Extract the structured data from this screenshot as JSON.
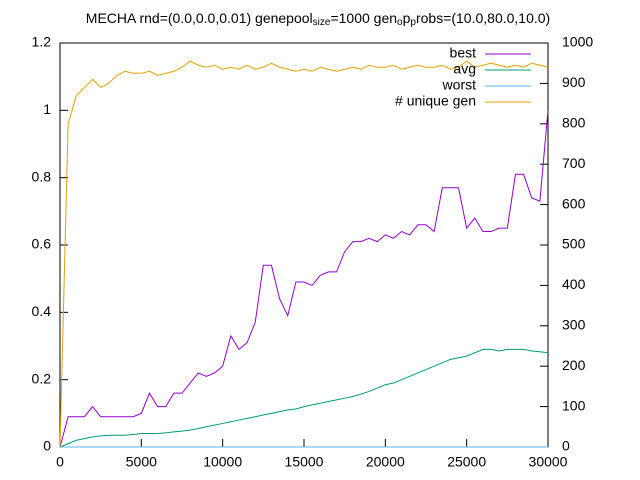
{
  "chart_data": {
    "type": "line",
    "title": [
      {
        "text": "MECHA rnd=(0.0,0.0,0.01) genepool"
      },
      {
        "text": "size",
        "sub": true
      },
      {
        "text": "=1000 gen"
      },
      {
        "text": "o",
        "sub": true
      },
      {
        "text": "p"
      },
      {
        "text": "p",
        "sub": true
      },
      {
        "text": "robs=(10.0,80.0,10.0)"
      }
    ],
    "x": [
      0,
      500,
      1000,
      1500,
      2000,
      2500,
      3000,
      3500,
      4000,
      4500,
      5000,
      5500,
      6000,
      6500,
      7000,
      7500,
      8000,
      8500,
      9000,
      9500,
      10000,
      10500,
      11000,
      11500,
      12000,
      12500,
      13000,
      13500,
      14000,
      14500,
      15000,
      15500,
      16000,
      16500,
      17000,
      17500,
      18000,
      18500,
      19000,
      19500,
      20000,
      20500,
      21000,
      21500,
      22000,
      22500,
      23000,
      23500,
      24000,
      24500,
      25000,
      25500,
      26000,
      26500,
      27000,
      27500,
      28000,
      28500,
      29000,
      29500,
      30000
    ],
    "series": [
      {
        "name": "best",
        "color": "#9400d3",
        "values": [
          0,
          0.09,
          0.09,
          0.09,
          0.12,
          0.09,
          0.09,
          0.09,
          0.09,
          0.09,
          0.1,
          0.16,
          0.12,
          0.12,
          0.16,
          0.16,
          0.19,
          0.22,
          0.21,
          0.22,
          0.24,
          0.33,
          0.29,
          0.31,
          0.37,
          0.54,
          0.54,
          0.44,
          0.39,
          0.49,
          0.49,
          0.48,
          0.51,
          0.52,
          0.52,
          0.58,
          0.61,
          0.61,
          0.62,
          0.61,
          0.63,
          0.62,
          0.64,
          0.63,
          0.66,
          0.66,
          0.64,
          0.77,
          0.77,
          0.77,
          0.65,
          0.68,
          0.64,
          0.64,
          0.65,
          0.65,
          0.81,
          0.81,
          0.74,
          0.73,
          1.0
        ]
      },
      {
        "name": "avg",
        "color": "#009e73",
        "values": [
          0,
          0.01,
          0.02,
          0.025,
          0.03,
          0.033,
          0.035,
          0.035,
          0.035,
          0.037,
          0.04,
          0.04,
          0.04,
          0.042,
          0.045,
          0.047,
          0.05,
          0.055,
          0.06,
          0.065,
          0.07,
          0.075,
          0.08,
          0.085,
          0.09,
          0.095,
          0.1,
          0.105,
          0.11,
          0.113,
          0.12,
          0.125,
          0.13,
          0.135,
          0.14,
          0.145,
          0.15,
          0.157,
          0.165,
          0.175,
          0.185,
          0.19,
          0.2,
          0.21,
          0.22,
          0.23,
          0.24,
          0.25,
          0.26,
          0.265,
          0.27,
          0.28,
          0.29,
          0.29,
          0.285,
          0.29,
          0.29,
          0.29,
          0.285,
          0.283,
          0.28
        ]
      },
      {
        "name": "worst",
        "color": "#56b4e9",
        "values": [
          0,
          0,
          0,
          0,
          0,
          0,
          0,
          0,
          0,
          0,
          0,
          0,
          0,
          0,
          0,
          0,
          0,
          0,
          0,
          0,
          0,
          0,
          0,
          0,
          0,
          0,
          0,
          0,
          0,
          0,
          0,
          0,
          0,
          0,
          0,
          0,
          0,
          0,
          0,
          0,
          0,
          0,
          0,
          0,
          0,
          0,
          0,
          0,
          0,
          0,
          0,
          0,
          0,
          0,
          0,
          0,
          0,
          0,
          0,
          0,
          0
        ]
      },
      {
        "name": "# unique gen",
        "color": "#e69f00",
        "axis": "y2",
        "values": [
          0,
          800,
          870,
          890,
          910,
          890,
          900,
          920,
          930,
          925,
          925,
          930,
          920,
          925,
          930,
          940,
          955,
          945,
          940,
          945,
          935,
          940,
          935,
          945,
          935,
          940,
          950,
          940,
          935,
          930,
          935,
          930,
          940,
          935,
          930,
          935,
          940,
          935,
          945,
          940,
          940,
          945,
          935,
          940,
          945,
          940,
          940,
          945,
          935,
          940,
          955,
          940,
          945,
          950,
          945,
          940,
          945,
          940,
          950,
          945,
          940
        ]
      }
    ],
    "xlim": [
      0,
      30000
    ],
    "xticks": [
      0,
      5000,
      10000,
      15000,
      20000,
      25000,
      30000
    ],
    "ylim": [
      0,
      1.2
    ],
    "yticks": [
      0,
      0.2,
      0.4,
      0.6,
      0.8,
      1,
      1.2
    ],
    "y2lim": [
      0,
      1000
    ],
    "y2ticks": [
      0,
      100,
      200,
      300,
      400,
      500,
      600,
      700,
      800,
      900,
      1000
    ],
    "grid": false,
    "legend": "top-right"
  }
}
